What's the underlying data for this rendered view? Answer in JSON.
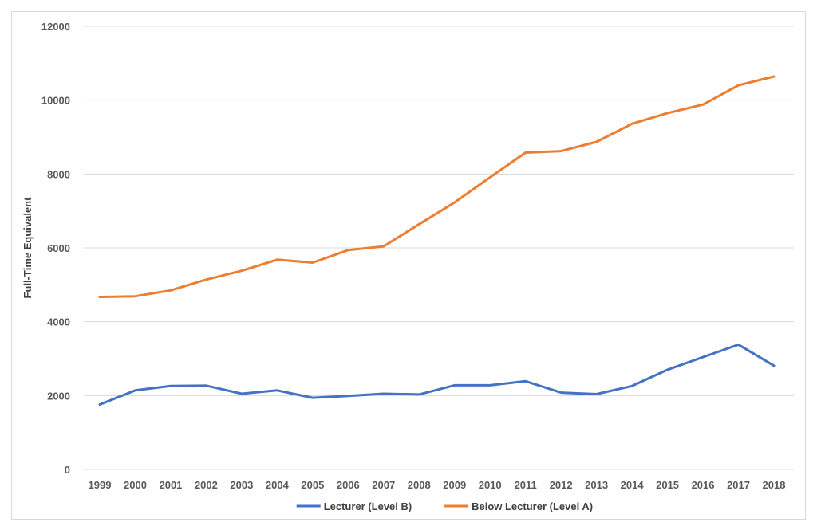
{
  "chart_data": {
    "type": "line",
    "title": "",
    "xlabel": "",
    "ylabel": "Full-Time Equivalent",
    "x": [
      "1999",
      "2000",
      "2001",
      "2002",
      "2003",
      "2004",
      "2005",
      "2006",
      "2007",
      "2008",
      "2009",
      "2010",
      "2011",
      "2012",
      "2013",
      "2014",
      "2015",
      "2016",
      "2017",
      "2018"
    ],
    "ylim": [
      0,
      12000
    ],
    "yticks": [
      0,
      2000,
      4000,
      6000,
      8000,
      10000,
      12000
    ],
    "ytick_labels": [
      "0",
      "2000",
      "4000",
      "6000",
      "8000",
      "10000",
      "12000"
    ],
    "grid": true,
    "legend_position": "bottom",
    "series": [
      {
        "name": "Lecturer (Level B)",
        "color": "#4472c4",
        "values": [
          1760,
          2140,
          2260,
          2270,
          2050,
          2140,
          1940,
          1990,
          2050,
          2030,
          2280,
          2280,
          2390,
          2080,
          2040,
          2260,
          2700,
          3040,
          3380,
          2810
        ]
      },
      {
        "name": "Below Lecturer (Level A)",
        "color": "#ed7d31",
        "values": [
          4670,
          4690,
          4850,
          5140,
          5380,
          5680,
          5600,
          5940,
          6040,
          6640,
          7230,
          7910,
          8580,
          8620,
          8870,
          9360,
          9650,
          9880,
          10400,
          10640
        ]
      }
    ]
  }
}
